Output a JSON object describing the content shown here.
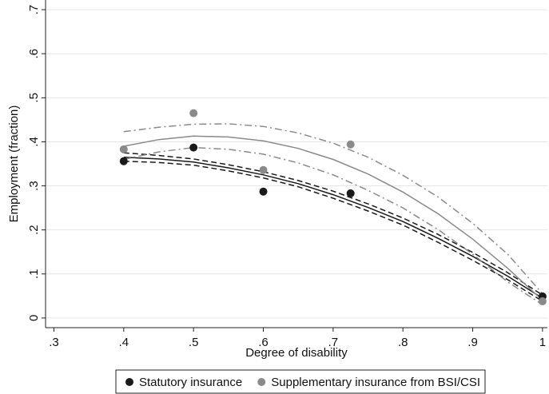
{
  "chart_data": {
    "type": "scatter",
    "x_label": "Degree of disability",
    "y_label": "Employment (fraction)",
    "xlim": [
      0.288,
      1.007
    ],
    "ylim": [
      -0.022,
      0.722
    ],
    "xticks": [
      {
        "value": 0.3,
        "label": ".3"
      },
      {
        "value": 0.4,
        "label": ".4"
      },
      {
        "value": 0.5,
        "label": ".5"
      },
      {
        "value": 0.6,
        "label": ".6"
      },
      {
        "value": 0.7,
        "label": ".7"
      },
      {
        "value": 0.8,
        "label": ".8"
      },
      {
        "value": 0.9,
        "label": ".9"
      },
      1
    ],
    "yticks": [
      0,
      {
        "value": 0.1,
        "label": ".1"
      },
      {
        "value": 0.2,
        "label": ".2"
      },
      {
        "value": 0.3,
        "label": ".3"
      },
      {
        "value": 0.4,
        "label": ".4"
      },
      {
        "value": 0.5,
        "label": ".5"
      },
      {
        "value": 0.6,
        "label": ".6"
      },
      {
        "value": 0.7,
        "label": ".7"
      }
    ],
    "grid": true,
    "legend": "bottom",
    "series": [
      {
        "name": "Statutory insurance",
        "color": "#1a1a1a",
        "style": "points",
        "x": [
          0.4,
          0.5,
          0.6,
          0.725,
          1
        ],
        "values": [
          0.356,
          0.387,
          0.287,
          0.283,
          0.049
        ]
      },
      {
        "name": "Supplementary insurance from BSI/CSI",
        "color": "#8a8a8a",
        "style": "points",
        "x": [
          0.4,
          0.5,
          0.6,
          0.725,
          1
        ],
        "values": [
          0.383,
          0.465,
          0.336,
          0.394,
          0.038
        ]
      },
      {
        "color": "#1a1a1a",
        "style": "solid",
        "x": [
          0.4,
          0.45,
          0.5,
          0.55,
          0.6,
          0.65,
          0.7,
          0.75,
          0.8,
          0.85,
          0.9,
          0.95,
          1.0
        ],
        "values": [
          0.365,
          0.361,
          0.354,
          0.341,
          0.325,
          0.305,
          0.28,
          0.251,
          0.219,
          0.181,
          0.14,
          0.095,
          0.045
        ]
      },
      {
        "color": "#1a1a1a",
        "style": "dashed",
        "x": [
          0.4,
          0.45,
          0.5,
          0.55,
          0.6,
          0.65,
          0.7,
          0.75,
          0.8,
          0.85,
          0.9,
          0.95,
          1.0
        ],
        "values": [
          0.375,
          0.369,
          0.361,
          0.348,
          0.332,
          0.312,
          0.288,
          0.259,
          0.227,
          0.19,
          0.149,
          0.103,
          0.052
        ]
      },
      {
        "color": "#1a1a1a",
        "style": "dashed",
        "x": [
          0.4,
          0.45,
          0.5,
          0.55,
          0.6,
          0.65,
          0.7,
          0.75,
          0.8,
          0.85,
          0.9,
          0.95,
          1.0
        ],
        "values": [
          0.356,
          0.353,
          0.347,
          0.334,
          0.318,
          0.298,
          0.272,
          0.243,
          0.211,
          0.172,
          0.131,
          0.087,
          0.038
        ]
      },
      {
        "color": "#8a8a8a",
        "style": "solid",
        "x": [
          0.4,
          0.45,
          0.5,
          0.55,
          0.6,
          0.65,
          0.7,
          0.75,
          0.8,
          0.85,
          0.9,
          0.95,
          1.0
        ],
        "values": [
          0.39,
          0.405,
          0.413,
          0.411,
          0.402,
          0.385,
          0.36,
          0.327,
          0.286,
          0.237,
          0.179,
          0.113,
          0.04
        ]
      },
      {
        "color": "#8a8a8a",
        "style": "dashdot",
        "x": [
          0.4,
          0.45,
          0.5,
          0.55,
          0.6,
          0.65,
          0.7,
          0.75,
          0.8,
          0.85,
          0.9,
          0.95,
          1.0
        ],
        "values": [
          0.423,
          0.433,
          0.44,
          0.441,
          0.435,
          0.42,
          0.397,
          0.365,
          0.324,
          0.275,
          0.215,
          0.145,
          0.055
        ]
      },
      {
        "color": "#8a8a8a",
        "style": "dashdot",
        "x": [
          0.4,
          0.45,
          0.5,
          0.55,
          0.6,
          0.65,
          0.7,
          0.75,
          0.8,
          0.85,
          0.9,
          0.95,
          1.0
        ],
        "values": [
          0.36,
          0.377,
          0.387,
          0.383,
          0.372,
          0.352,
          0.325,
          0.29,
          0.25,
          0.201,
          0.145,
          0.082,
          0.03
        ]
      }
    ]
  }
}
